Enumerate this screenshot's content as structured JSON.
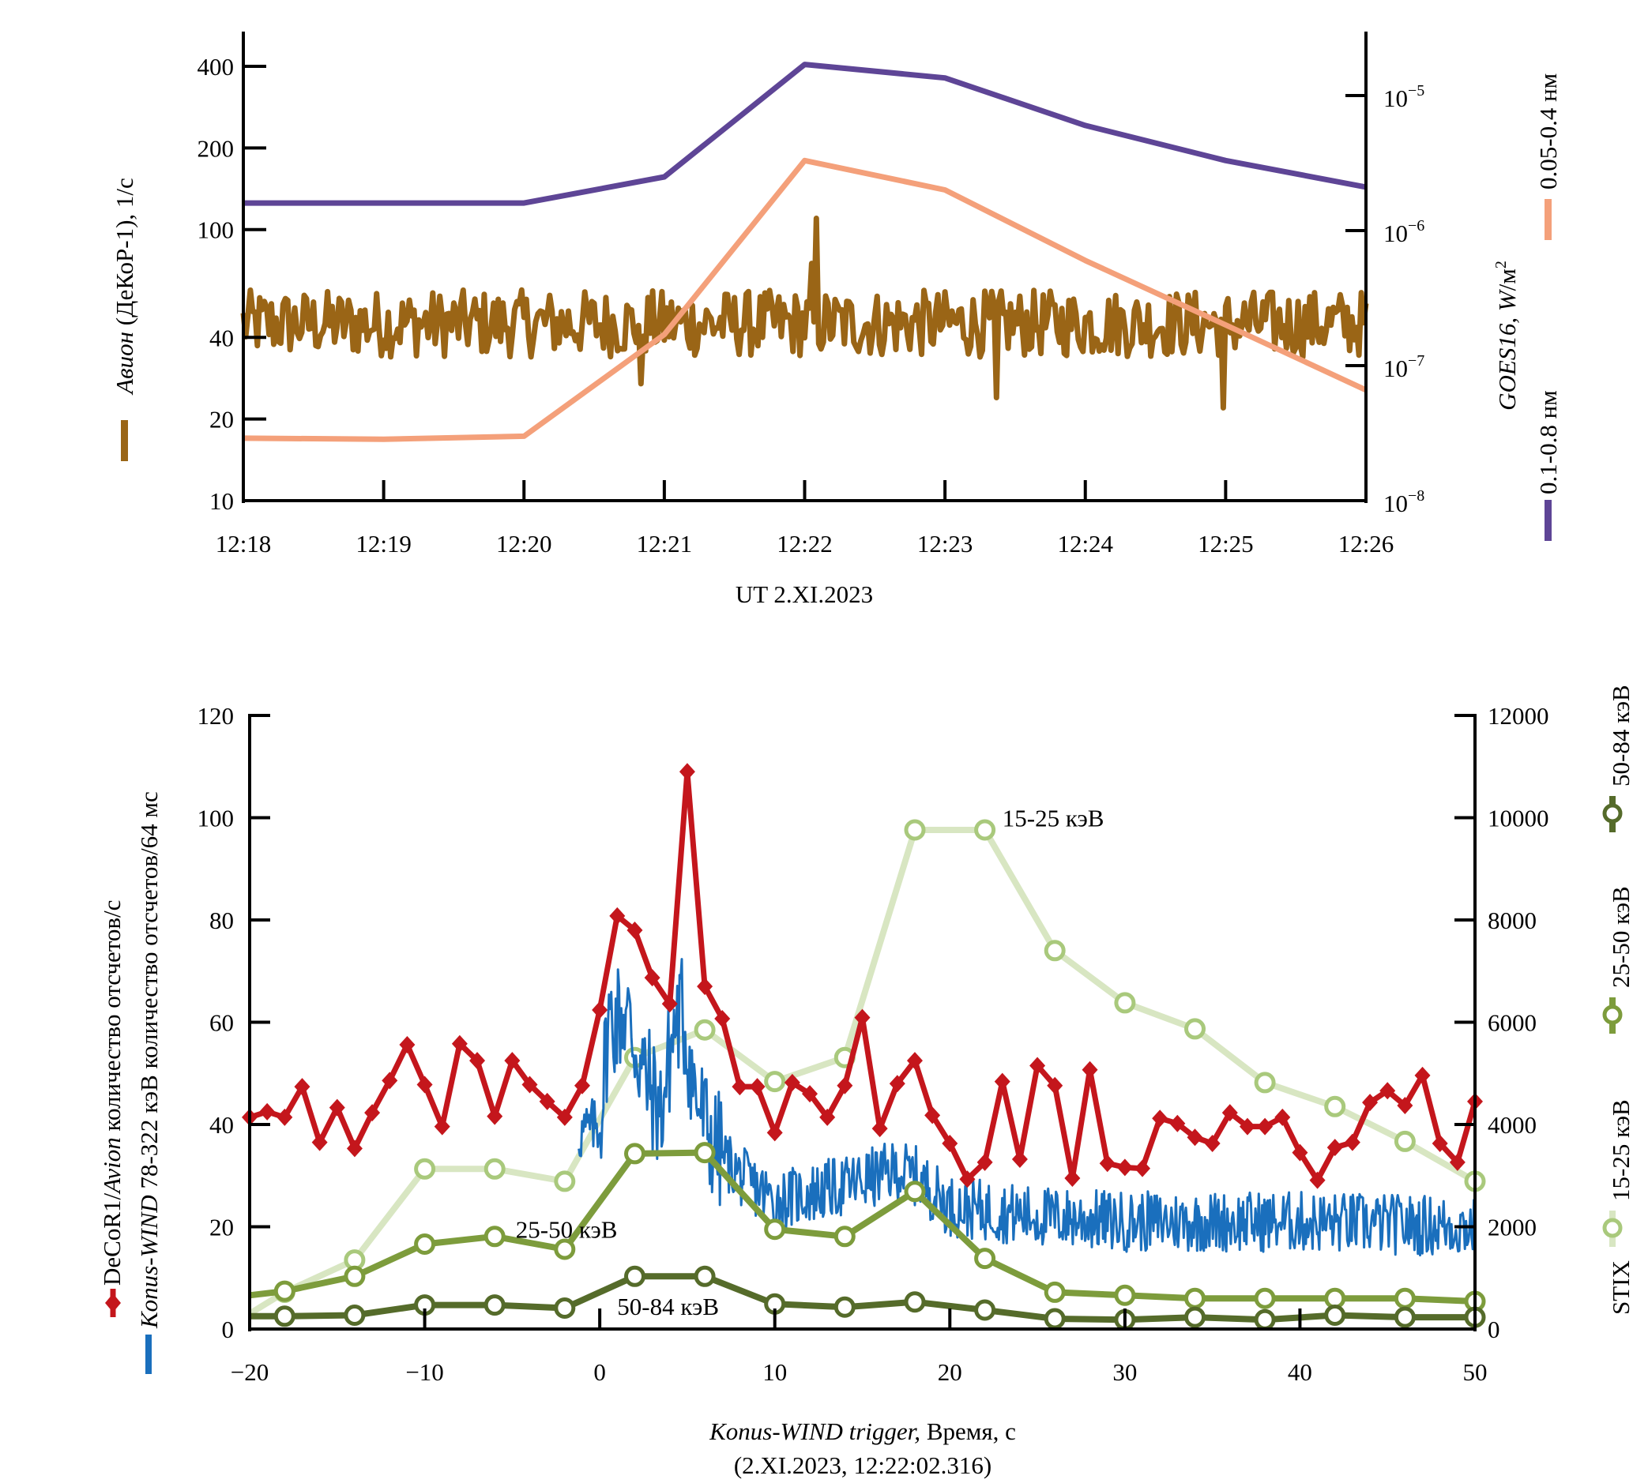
{
  "chart_data": [
    {
      "type": "line",
      "id": "top",
      "title": "",
      "xlabel": "UT 2.XI.2023",
      "x_ticks": [
        "12:18",
        "12:19",
        "12:20",
        "12:21",
        "12:22",
        "12:23",
        "12:24",
        "12:25",
        "12:26"
      ],
      "x_range_minutes": [
        0,
        8
      ],
      "left_axis": {
        "scale": "log",
        "label_italic": "Авион",
        "label_rest": " (ДеКоР-1), 1/с",
        "ylim": [
          10,
          480
        ],
        "ticks": [
          10,
          20,
          40,
          100,
          200,
          400
        ],
        "tick_labels": [
          "10",
          "20",
          "40",
          "100",
          "200",
          "400"
        ]
      },
      "right_axis": {
        "scale": "log",
        "label_italic": "GOES16, W",
        "label_rest": "/м",
        "label_sup": "2",
        "ylim": [
          1e-08,
          2.5e-05
        ],
        "ticks": [
          1e-08,
          1e-07,
          1e-06,
          1e-05
        ],
        "tick_base": "10",
        "tick_exponents": [
          "−8",
          "−7",
          "−6",
          "−5"
        ]
      },
      "series": [
        {
          "name": "GOES 0.1-0.8 нм",
          "legend_label": "0.1-0.8 нм",
          "axis": "right",
          "color": "#5e4596",
          "x_minutes": [
            0,
            2,
            3,
            4,
            5,
            6,
            7,
            8
          ],
          "values": [
            1.6e-06,
            1.6e-06,
            2.5e-06,
            1.7e-05,
            1.35e-05,
            6e-06,
            3.3e-06,
            2.1e-06
          ]
        },
        {
          "name": "GOES 0.05-0.4 нм",
          "legend_label": "0.05-0.4 нм",
          "axis": "right",
          "color": "#f4a07a",
          "x_minutes": [
            0,
            1,
            2,
            3,
            4,
            5,
            6,
            7,
            8
          ],
          "values": [
            2.9e-08,
            2.85e-08,
            3e-08,
            1.7e-07,
            3.3e-06,
            2e-06,
            6e-07,
            2e-07,
            6.6e-08
          ]
        },
        {
          "name": "Авион (ДеКоР-1)",
          "axis": "left",
          "color": "#9a6516",
          "kind": "noisy",
          "samples_per_minute": 60,
          "baseline": 45,
          "noise_factor": 0.22,
          "features": [
            {
              "x_minutes": 4.08,
              "value": 110
            },
            {
              "x_minutes": 4.05,
              "value": 75
            },
            {
              "x_minutes": 2.83,
              "value": 27
            },
            {
              "x_minutes": 5.37,
              "value": 24
            },
            {
              "x_minutes": 6.98,
              "value": 22
            }
          ]
        }
      ]
    },
    {
      "type": "line",
      "id": "bottom",
      "xlabel_italic": "Konus-WIND trigger,",
      "xlabel_rest": " Время, с",
      "xlabel_line2": "(2.XI.2023, 12:22:02.316)",
      "xlim": [
        -20,
        50
      ],
      "x_ticks": [
        -20,
        -10,
        0,
        10,
        20,
        30,
        40,
        50
      ],
      "x_tick_labels": [
        "−20",
        "−10",
        "0",
        "10",
        "20",
        "30",
        "40",
        "50"
      ],
      "left_axis": {
        "ylim": [
          0,
          120
        ],
        "ticks": [
          0,
          20,
          40,
          60,
          80,
          100,
          120
        ],
        "legend": [
          {
            "marker": "red-diamond",
            "label_plain": "DeCoR1/",
            "label_italic": "Avion",
            "label_rest": " количество отсчетов/с"
          },
          {
            "marker": "blue-bar",
            "label_italic": "Konus",
            "label_plain": "-",
            "label_italic2": "WIND",
            "label_rest": " 78-322 кэВ количество отсчетов/64 мс"
          }
        ]
      },
      "right_axis": {
        "ylim": [
          0,
          12000
        ],
        "ticks": [
          0,
          2000,
          4000,
          6000,
          8000,
          10000,
          12000
        ],
        "legend_title": "STIX",
        "legend": [
          "15-25 кэВ",
          "25-50 кэВ",
          "50-84 кэВ"
        ]
      },
      "annotations": [
        {
          "text": "15-25 кэВ",
          "x": 23,
          "y_right": 10000
        },
        {
          "text": "25-50 кэВ",
          "x": -4.8,
          "y_right": 1950
        },
        {
          "text": "50-84 кэВ",
          "x": 1,
          "y_right": 450
        }
      ],
      "series": [
        {
          "name": "DeCoR1/Avion",
          "axis": "left",
          "color": "#c4161c",
          "marker": "diamond",
          "x": [
            -20,
            -19,
            -18,
            -17,
            -16,
            -15,
            -14,
            -13,
            -12,
            -11,
            -10,
            -9,
            -8,
            -7,
            -6,
            -5,
            -4,
            -3,
            -2,
            -1,
            0,
            1,
            2,
            3,
            4,
            5,
            6,
            7,
            8,
            9,
            10,
            11,
            12,
            13,
            14,
            15,
            16,
            17,
            18,
            19,
            20,
            21,
            22,
            23,
            24,
            25,
            26,
            27,
            28,
            29,
            30,
            31,
            32,
            33,
            34,
            35,
            36,
            37,
            38,
            39,
            40,
            41,
            42,
            43,
            44,
            45,
            46,
            47,
            48,
            49,
            50
          ],
          "values": [
            41.4,
            42.5,
            41.4,
            47.4,
            36.5,
            43.3,
            35.3,
            42.3,
            48.6,
            55.6,
            47.8,
            39.6,
            55.8,
            52.5,
            41.6,
            52.5,
            47.8,
            44.5,
            41.4,
            47.6,
            62.4,
            80.8,
            78,
            68.7,
            63.6,
            109,
            67,
            60.7,
            47.4,
            47.4,
            38.4,
            48.2,
            46,
            41.4,
            47.6,
            60.9,
            39.2,
            48,
            52.5,
            41.8,
            36.3,
            29.3,
            32.6,
            48.4,
            33.2,
            51.5,
            47.6,
            29.5,
            50.7,
            32.4,
            31.6,
            31.4,
            41.2,
            40.2,
            37.5,
            36.3,
            42.3,
            39.6,
            39.6,
            41.4,
            34.5,
            29.1,
            35.5,
            36.5,
            44.3,
            46.6,
            43.7,
            49.6,
            36.3,
            32.6,
            44.5
          ]
        },
        {
          "name": "Konus-WIND 78-322 кэВ",
          "axis": "left",
          "color": "#1a6fbd",
          "kind": "noisy",
          "bin_seconds": 0.064,
          "x_range": [
            -1.2,
            50
          ],
          "envelope": {
            "x": [
              -1.2,
              0,
              0.5,
              1.5,
              2.5,
              3.5,
              4.2,
              4.7,
              5.5,
              6.5,
              8,
              10,
              14,
              17,
              18,
              20,
              25,
              30,
              40,
              50
            ],
            "values": [
              38,
              40,
              60,
              62,
              50,
              42,
              58,
              62,
              45,
              36,
              30,
              25,
              28,
              31,
              30,
              24,
              22,
              21,
              21,
              20
            ]
          },
          "noise_amplitude": 6
        },
        {
          "name": "STIX 15-25 кэВ",
          "axis": "right",
          "color_line": "#d8e6c2",
          "color_marker": "#a9c97c",
          "marker": "open-circle",
          "x": [
            -20,
            -18,
            -14,
            -10,
            -6,
            -2,
            2,
            6,
            10,
            14,
            18,
            22,
            26,
            30,
            34,
            38,
            42,
            46,
            50
          ],
          "values": [
            300,
            720,
            1350,
            3130,
            3130,
            2890,
            5310,
            5850,
            4840,
            5310,
            9760,
            9760,
            7400,
            6380,
            5870,
            4820,
            4350,
            3670,
            2890
          ],
          "marker_from_index": 1
        },
        {
          "name": "STIX 25-50 кэВ",
          "axis": "right",
          "color_line": "#7d9c3c",
          "color_marker": "#7d9c3c",
          "marker": "open-circle",
          "x": [
            -20,
            -18,
            -14,
            -10,
            -6,
            -2,
            2,
            6,
            10,
            14,
            18,
            22,
            26,
            30,
            34,
            38,
            42,
            46,
            50
          ],
          "values": [
            660,
            740,
            1030,
            1660,
            1810,
            1560,
            3430,
            3450,
            1950,
            1810,
            2690,
            1380,
            720,
            660,
            600,
            600,
            600,
            600,
            540
          ],
          "marker_from_index": 1
        },
        {
          "name": "STIX 50-84 кэВ",
          "axis": "right",
          "color_line": "#556b2a",
          "color_marker": "#556b2a",
          "marker": "open-circle",
          "x": [
            -20,
            -18,
            -14,
            -10,
            -6,
            -2,
            2,
            6,
            10,
            14,
            18,
            22,
            26,
            30,
            34,
            38,
            42,
            46,
            50
          ],
          "values": [
            250,
            250,
            270,
            470,
            470,
            410,
            1030,
            1030,
            490,
            430,
            530,
            370,
            200,
            180,
            230,
            180,
            270,
            230,
            230
          ],
          "marker_from_index": 1
        }
      ]
    }
  ]
}
